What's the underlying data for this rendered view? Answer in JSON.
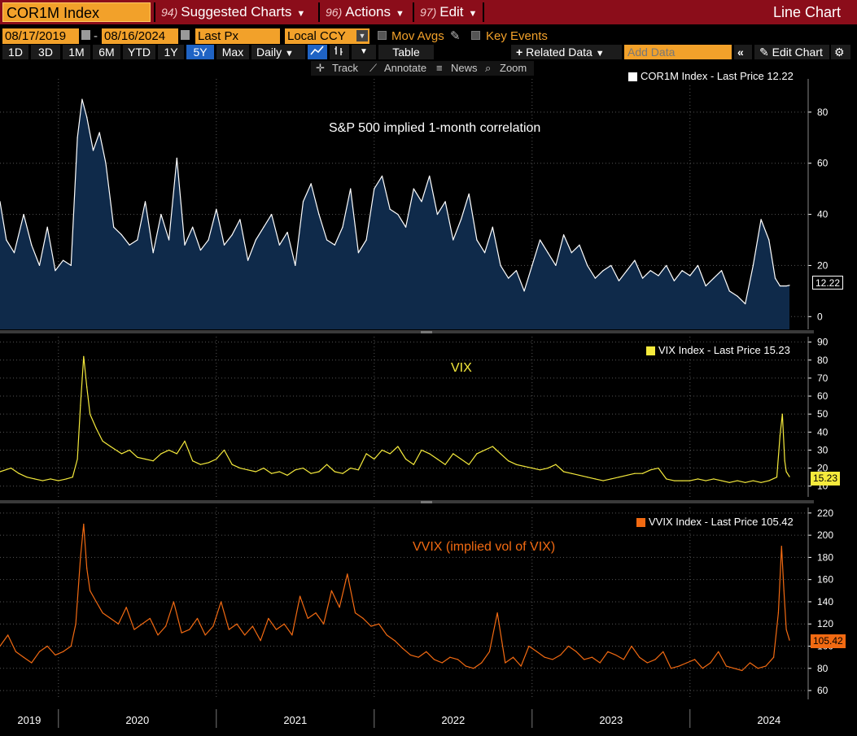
{
  "header": {
    "security": "COR1M Index",
    "menus": [
      {
        "num": "94)",
        "label": "Suggested Charts"
      },
      {
        "num": "96)",
        "label": "Actions"
      },
      {
        "num": "97)",
        "label": "Edit"
      }
    ],
    "chart_type": "Line Chart"
  },
  "controls": {
    "start_date": "08/17/2019",
    "end_date": "08/16/2024",
    "field": "Last Px",
    "currency": "Local CCY",
    "mov_avgs": "Mov Avgs",
    "key_events": "Key Events",
    "timeframes": [
      "1D",
      "3D",
      "1M",
      "6M",
      "YTD",
      "1Y",
      "5Y",
      "Max"
    ],
    "active_timeframe": "5Y",
    "frequency": "Daily",
    "table": "Table",
    "related_data": "Related Data",
    "add_data_placeholder": "Add Data",
    "edit_chart": "Edit Chart",
    "tools": [
      "Track",
      "Annotate",
      "News",
      "Zoom"
    ]
  },
  "colors": {
    "cor1m_line": "#ffffff",
    "cor1m_fill": "#0f2a4a",
    "vix_line": "#f5ea3c",
    "vvix_line": "#f26a12",
    "axis_text": "#ffffff",
    "grid": "#555555",
    "brand_orange": "#f2a12a",
    "title_bar": "#8b0d1a"
  },
  "chart_data": [
    {
      "type": "area",
      "name": "COR1M Index",
      "legend": "COR1M Index - Last Price 12.22",
      "annotation": "S&P 500 implied 1-month correlation",
      "last_value": "12.22",
      "ylim": [
        -5,
        93
      ],
      "yticks": [
        0,
        20,
        40,
        60,
        80
      ],
      "xlim": [
        2019.63,
        2024.63
      ],
      "x": [
        2019.63,
        2019.67,
        2019.72,
        2019.78,
        2019.83,
        2019.88,
        2019.93,
        2019.98,
        2020.03,
        2020.08,
        2020.12,
        2020.15,
        2020.18,
        2020.22,
        2020.26,
        2020.3,
        2020.35,
        2020.4,
        2020.45,
        2020.5,
        2020.55,
        2020.6,
        2020.65,
        2020.7,
        2020.75,
        2020.8,
        2020.85,
        2020.9,
        2020.95,
        2021.0,
        2021.05,
        2021.1,
        2021.15,
        2021.2,
        2021.25,
        2021.3,
        2021.35,
        2021.4,
        2021.45,
        2021.5,
        2021.55,
        2021.6,
        2021.65,
        2021.7,
        2021.75,
        2021.8,
        2021.85,
        2021.9,
        2021.95,
        2022.0,
        2022.05,
        2022.1,
        2022.15,
        2022.2,
        2022.25,
        2022.3,
        2022.35,
        2022.4,
        2022.45,
        2022.5,
        2022.55,
        2022.6,
        2022.65,
        2022.7,
        2022.75,
        2022.8,
        2022.85,
        2022.9,
        2022.95,
        2023.0,
        2023.05,
        2023.1,
        2023.15,
        2023.2,
        2023.25,
        2023.3,
        2023.35,
        2023.4,
        2023.45,
        2023.5,
        2023.55,
        2023.6,
        2023.65,
        2023.7,
        2023.75,
        2023.8,
        2023.85,
        2023.9,
        2023.95,
        2024.0,
        2024.05,
        2024.1,
        2024.15,
        2024.2,
        2024.25,
        2024.3,
        2024.35,
        2024.4,
        2024.45,
        2024.5,
        2024.54,
        2024.57,
        2024.59,
        2024.61,
        2024.63
      ],
      "values": [
        45,
        30,
        25,
        40,
        28,
        20,
        35,
        18,
        22,
        20,
        70,
        85,
        78,
        65,
        72,
        60,
        35,
        32,
        28,
        30,
        45,
        25,
        40,
        30,
        62,
        28,
        35,
        26,
        30,
        42,
        28,
        32,
        38,
        22,
        30,
        35,
        40,
        28,
        33,
        20,
        45,
        52,
        40,
        30,
        28,
        35,
        50,
        25,
        30,
        50,
        55,
        42,
        40,
        35,
        50,
        45,
        55,
        40,
        45,
        30,
        38,
        48,
        30,
        25,
        35,
        20,
        15,
        18,
        10,
        20,
        30,
        25,
        20,
        32,
        25,
        28,
        20,
        15,
        18,
        20,
        14,
        18,
        22,
        15,
        18,
        16,
        20,
        14,
        18,
        16,
        20,
        12,
        15,
        18,
        10,
        8,
        5,
        20,
        38,
        30,
        15,
        12,
        12,
        12,
        12.22
      ]
    },
    {
      "type": "line",
      "name": "VIX Index",
      "legend": "VIX Index - Last Price 15.23",
      "annotation": "VIX",
      "last_value": "15.23",
      "ylim": [
        4,
        93
      ],
      "yticks": [
        10,
        20,
        30,
        40,
        50,
        60,
        70,
        80,
        90
      ],
      "xlim": [
        2019.63,
        2024.63
      ],
      "x": [
        2019.63,
        2019.7,
        2019.75,
        2019.8,
        2019.85,
        2019.9,
        2019.95,
        2020.0,
        2020.05,
        2020.09,
        2020.12,
        2020.14,
        2020.16,
        2020.18,
        2020.2,
        2020.24,
        2020.28,
        2020.33,
        2020.4,
        2020.45,
        2020.5,
        2020.55,
        2020.6,
        2020.65,
        2020.7,
        2020.75,
        2020.8,
        2020.85,
        2020.9,
        2020.95,
        2021.0,
        2021.05,
        2021.1,
        2021.15,
        2021.2,
        2021.25,
        2021.3,
        2021.35,
        2021.4,
        2021.45,
        2021.5,
        2021.55,
        2021.6,
        2021.65,
        2021.7,
        2021.75,
        2021.8,
        2021.85,
        2021.9,
        2021.95,
        2022.0,
        2022.05,
        2022.1,
        2022.15,
        2022.2,
        2022.25,
        2022.3,
        2022.35,
        2022.4,
        2022.45,
        2022.5,
        2022.55,
        2022.6,
        2022.65,
        2022.7,
        2022.75,
        2022.8,
        2022.85,
        2022.9,
        2022.95,
        2023.0,
        2023.05,
        2023.1,
        2023.15,
        2023.2,
        2023.25,
        2023.3,
        2023.35,
        2023.4,
        2023.45,
        2023.5,
        2023.55,
        2023.6,
        2023.65,
        2023.7,
        2023.75,
        2023.8,
        2023.85,
        2023.9,
        2023.95,
        2024.0,
        2024.05,
        2024.1,
        2024.15,
        2024.2,
        2024.25,
        2024.3,
        2024.35,
        2024.4,
        2024.45,
        2024.5,
        2024.55,
        2024.57,
        2024.585,
        2024.6,
        2024.61,
        2024.63
      ],
      "values": [
        18,
        20,
        17,
        15,
        14,
        13,
        14,
        13,
        14,
        15,
        25,
        55,
        82,
        65,
        50,
        42,
        35,
        32,
        28,
        30,
        26,
        25,
        24,
        28,
        30,
        28,
        35,
        24,
        22,
        23,
        25,
        30,
        22,
        20,
        19,
        18,
        20,
        17,
        18,
        16,
        19,
        20,
        17,
        18,
        22,
        18,
        17,
        20,
        19,
        28,
        25,
        30,
        28,
        32,
        25,
        22,
        30,
        28,
        25,
        22,
        28,
        25,
        22,
        28,
        30,
        32,
        28,
        24,
        22,
        21,
        20,
        19,
        20,
        22,
        18,
        17,
        16,
        15,
        14,
        13,
        14,
        15,
        16,
        17,
        17,
        19,
        20,
        14,
        13,
        13,
        13,
        14,
        13,
        14,
        13,
        12,
        13,
        12,
        13,
        12,
        13,
        15,
        38,
        50,
        24,
        18,
        15.23
      ]
    },
    {
      "type": "line",
      "name": "VVIX Index",
      "legend": "VVIX Index - Last Price 105.42",
      "annotation": "VVIX (implied vol of VIX)",
      "last_value": "105.42",
      "ylim": [
        52,
        225
      ],
      "yticks": [
        60,
        80,
        100,
        120,
        140,
        160,
        180,
        200,
        220
      ],
      "xlim": [
        2019.63,
        2024.63
      ],
      "x": [
        2019.63,
        2019.68,
        2019.73,
        2019.78,
        2019.83,
        2019.88,
        2019.93,
        2019.98,
        2020.03,
        2020.08,
        2020.11,
        2020.14,
        2020.16,
        2020.18,
        2020.2,
        2020.24,
        2020.28,
        2020.33,
        2020.38,
        2020.43,
        2020.48,
        2020.53,
        2020.58,
        2020.63,
        2020.68,
        2020.73,
        2020.78,
        2020.83,
        2020.88,
        2020.93,
        2020.98,
        2021.03,
        2021.08,
        2021.13,
        2021.18,
        2021.23,
        2021.28,
        2021.33,
        2021.38,
        2021.43,
        2021.48,
        2021.53,
        2021.58,
        2021.63,
        2021.68,
        2021.73,
        2021.78,
        2021.83,
        2021.88,
        2021.93,
        2021.98,
        2022.03,
        2022.08,
        2022.13,
        2022.18,
        2022.23,
        2022.28,
        2022.33,
        2022.38,
        2022.43,
        2022.48,
        2022.53,
        2022.58,
        2022.63,
        2022.68,
        2022.73,
        2022.78,
        2022.83,
        2022.88,
        2022.93,
        2022.98,
        2023.03,
        2023.08,
        2023.13,
        2023.18,
        2023.23,
        2023.28,
        2023.33,
        2023.38,
        2023.43,
        2023.48,
        2023.53,
        2023.58,
        2023.63,
        2023.68,
        2023.73,
        2023.78,
        2023.83,
        2023.88,
        2023.93,
        2023.98,
        2024.03,
        2024.08,
        2024.13,
        2024.18,
        2024.23,
        2024.28,
        2024.33,
        2024.38,
        2024.43,
        2024.48,
        2024.53,
        2024.56,
        2024.58,
        2024.595,
        2024.61,
        2024.63
      ],
      "values": [
        100,
        110,
        95,
        90,
        85,
        95,
        100,
        92,
        95,
        100,
        120,
        180,
        210,
        170,
        150,
        140,
        130,
        125,
        120,
        135,
        115,
        120,
        125,
        110,
        118,
        140,
        112,
        115,
        125,
        110,
        118,
        140,
        115,
        120,
        110,
        118,
        105,
        125,
        115,
        120,
        110,
        145,
        125,
        130,
        120,
        150,
        135,
        165,
        130,
        125,
        118,
        120,
        110,
        105,
        98,
        92,
        90,
        95,
        88,
        85,
        90,
        88,
        82,
        80,
        85,
        95,
        130,
        85,
        90,
        82,
        100,
        95,
        90,
        88,
        92,
        100,
        95,
        88,
        90,
        85,
        95,
        92,
        88,
        100,
        90,
        85,
        88,
        95,
        80,
        82,
        85,
        88,
        80,
        85,
        95,
        82,
        80,
        78,
        85,
        80,
        82,
        90,
        130,
        190,
        150,
        115,
        105.42
      ]
    }
  ],
  "x_axis": {
    "labels": [
      "2019",
      "2020",
      "2021",
      "2022",
      "2023",
      "2024"
    ]
  }
}
